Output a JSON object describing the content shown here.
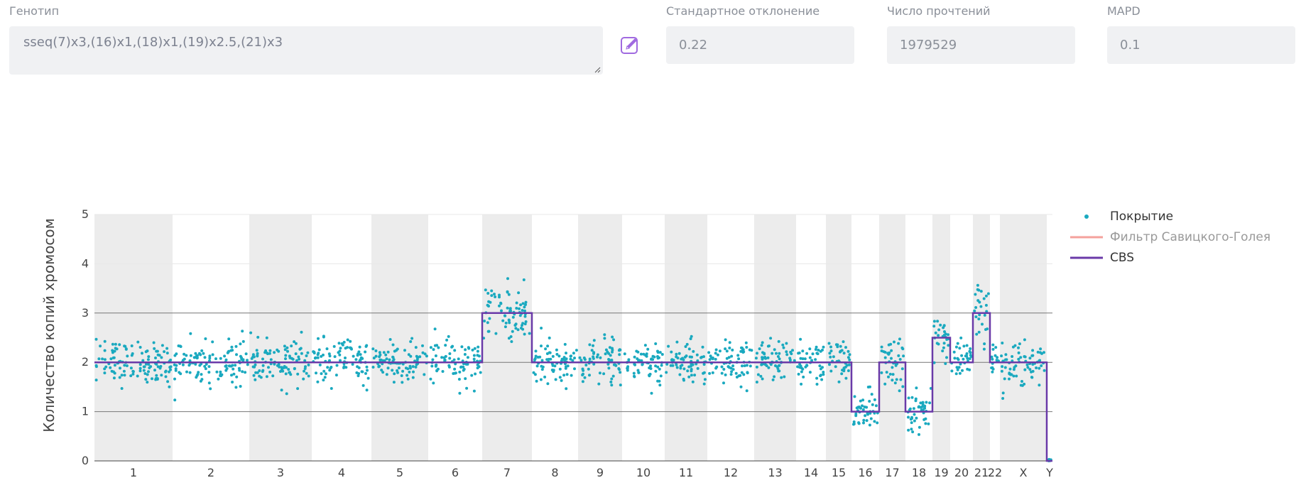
{
  "form": {
    "genotype_label": "Генотип",
    "genotype_value": "sseq(7)x3,(16)x1,(18)x1,(19)x2.5,(21)x3",
    "std_label": "Стандартное отклонение",
    "std_value": "0.22",
    "reads_label": "Число прочтений",
    "reads_value": "1979529",
    "mapd_label": "MAPD",
    "mapd_value": "0.1"
  },
  "icons": {
    "edit": "pencil-edit-icon"
  },
  "colors": {
    "coverage": "#1aa9bf",
    "savgol": "#f4a19c",
    "cbs": "#6a3aa8",
    "band_gray": "#ececec",
    "accent_purple": "#a06ae0"
  },
  "chart_data": {
    "type": "scatter",
    "ylabel": "Количество копий хромосом",
    "xlabel": "",
    "ylim": [
      0,
      5
    ],
    "yticks": [
      0,
      1,
      2,
      3,
      4,
      5
    ],
    "chromosomes": [
      {
        "label": "1",
        "cn": 2,
        "shaded": true,
        "center_tick": true
      },
      {
        "label": "2",
        "cn": 2,
        "shaded": false
      },
      {
        "label": "3",
        "cn": 2,
        "shaded": true
      },
      {
        "label": "4",
        "cn": 2,
        "shaded": false
      },
      {
        "label": "5",
        "cn": 2,
        "shaded": true
      },
      {
        "label": "6",
        "cn": 2,
        "shaded": false
      },
      {
        "label": "7",
        "cn": 3,
        "shaded": true
      },
      {
        "label": "8",
        "cn": 2,
        "shaded": false
      },
      {
        "label": "9",
        "cn": 2,
        "shaded": true
      },
      {
        "label": "10",
        "cn": 2,
        "shaded": false
      },
      {
        "label": "11",
        "cn": 2,
        "shaded": true
      },
      {
        "label": "12",
        "cn": 2,
        "shaded": false
      },
      {
        "label": "13",
        "cn": 2,
        "shaded": true
      },
      {
        "label": "14",
        "cn": 2,
        "shaded": false
      },
      {
        "label": "15",
        "cn": 2,
        "shaded": true
      },
      {
        "label": "16",
        "cn": 1,
        "shaded": false
      },
      {
        "label": "17",
        "cn": 2,
        "shaded": true
      },
      {
        "label": "18",
        "cn": 1,
        "shaded": false
      },
      {
        "label": "19",
        "cn": 2.5,
        "shaded": true
      },
      {
        "label": "20",
        "cn": 2,
        "shaded": false
      },
      {
        "label": "21",
        "cn": 3,
        "shaded": true
      },
      {
        "label": "22",
        "cn": 2,
        "shaded": false
      },
      {
        "label": "X",
        "cn": 2,
        "shaded": true
      },
      {
        "label": "Y",
        "cn": 0,
        "shaded": false
      }
    ],
    "series": [
      {
        "name": "Покрытие",
        "kind": "markers"
      },
      {
        "name": "Фильтр Савицкого-Голея",
        "kind": "line"
      },
      {
        "name": "CBS",
        "kind": "line"
      }
    ],
    "legend_position": "top-right",
    "grid": true
  }
}
